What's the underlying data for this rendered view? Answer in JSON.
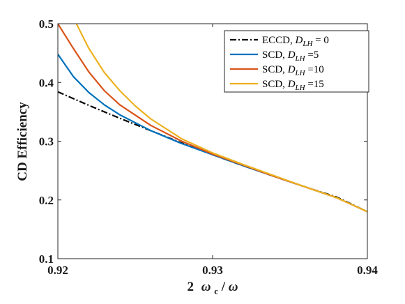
{
  "chart_data": {
    "type": "line",
    "xlabel_parts": {
      "prefix": "2",
      "omega_c": "ω",
      "sub": "c",
      "slash": " / ",
      "omega": "ω"
    },
    "ylabel": "CD Efficiency",
    "xlim": [
      0.92,
      0.94
    ],
    "ylim": [
      0.1,
      0.5
    ],
    "xticks": [
      "0.92",
      "0.93",
      "0.94"
    ],
    "yticks": [
      "0.1",
      "0.2",
      "0.3",
      "0.4",
      "0.5"
    ],
    "grid": false,
    "legend_position": "top-right",
    "series": [
      {
        "name": "ECCD, D_LH = 0",
        "legend": {
          "prefix": "ECCD, ",
          "var": "D",
          "sub": "LH",
          "suffix": " = 0"
        },
        "color": "#000000",
        "style": "dashdot",
        "x": [
          0.92,
          0.922,
          0.924,
          0.926,
          0.928,
          0.93,
          0.932,
          0.934,
          0.936,
          0.938,
          0.94
        ],
        "y": [
          0.384,
          0.361,
          0.339,
          0.318,
          0.297,
          0.277,
          0.258,
          0.24,
          0.222,
          0.205,
          0.18
        ]
      },
      {
        "name": "SCD, D_LH =5",
        "legend": {
          "prefix": "SCD, ",
          "var": "D",
          "sub": "LH",
          "suffix": " =5"
        },
        "color": "#0072BD",
        "style": "solid",
        "x": [
          0.92,
          0.921,
          0.922,
          0.923,
          0.924,
          0.926,
          0.928,
          0.93,
          0.932,
          0.934,
          0.936,
          0.938,
          0.94
        ],
        "y": [
          0.448,
          0.41,
          0.383,
          0.362,
          0.345,
          0.318,
          0.296,
          0.277,
          0.258,
          0.24,
          0.222,
          0.204,
          0.18
        ]
      },
      {
        "name": "SCD, D_LH =10",
        "legend": {
          "prefix": "SCD, ",
          "var": "D",
          "sub": "LH",
          "suffix": " =10"
        },
        "color": "#D95319",
        "style": "solid",
        "x": [
          0.92,
          0.921,
          0.922,
          0.923,
          0.924,
          0.926,
          0.928,
          0.93,
          0.932,
          0.934,
          0.936,
          0.938,
          0.94
        ],
        "y": [
          0.5,
          0.458,
          0.418,
          0.386,
          0.362,
          0.327,
          0.3,
          0.278,
          0.259,
          0.24,
          0.222,
          0.204,
          0.18
        ]
      },
      {
        "name": "SCD, D_LH =15",
        "legend": {
          "prefix": "SCD, ",
          "var": "D",
          "sub": "LH",
          "suffix": " =15"
        },
        "color": "#EDB120",
        "style": "solid",
        "x": [
          0.9212,
          0.922,
          0.923,
          0.924,
          0.925,
          0.926,
          0.928,
          0.93,
          0.932,
          0.934,
          0.936,
          0.938,
          0.94
        ],
        "y": [
          0.5,
          0.458,
          0.417,
          0.386,
          0.36,
          0.338,
          0.304,
          0.28,
          0.26,
          0.241,
          0.222,
          0.204,
          0.18
        ]
      }
    ]
  }
}
